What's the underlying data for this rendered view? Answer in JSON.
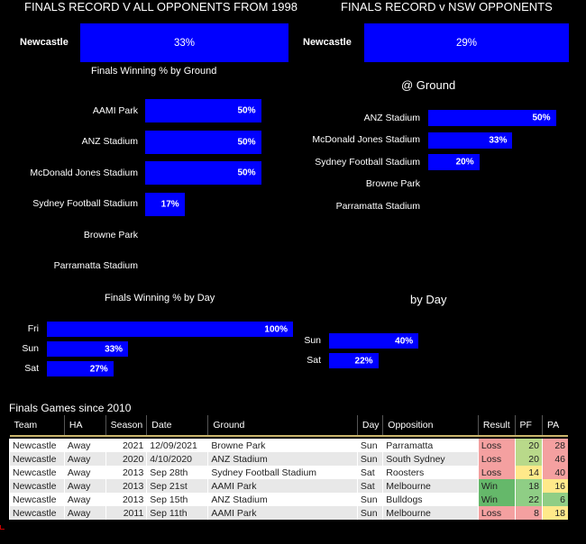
{
  "left_title": "FINALS RECORD V ALL OPPONENTS FROM 1998",
  "right_title": "FINALS RECORD v NSW OPPONENTS",
  "left_overall": {
    "team": "Newcastle",
    "value": "33%"
  },
  "right_overall": {
    "team": "Newcastle",
    "value": "29%"
  },
  "left_ground_title": "Finals Winning % by Ground",
  "right_ground_title": "@ Ground",
  "left_day_title": "Finals Winning % by Day",
  "right_day_title": "by Day",
  "colors": {
    "bar": "#0000ff",
    "win": "#65b86a",
    "loss": "#f4a0a0",
    "pf_pa_low": "#f4a0a0",
    "pf_pa_mid": "#ffe98a",
    "pf_pa_high": "#8fce85"
  },
  "chart_data": [
    {
      "type": "bar",
      "orientation": "horizontal",
      "categories": [
        "AAMI Park",
        "ANZ Stadium",
        "McDonald Jones Stadium",
        "Sydney Football Stadium",
        "Browne Park",
        "Parramatta Stadium"
      ],
      "values": [
        50,
        50,
        50,
        17,
        null,
        null
      ],
      "labels": [
        "50%",
        "50%",
        "50%",
        "17%",
        "",
        ""
      ],
      "title": "Finals Winning % by Ground",
      "xlim": [
        0,
        100
      ]
    },
    {
      "type": "bar",
      "orientation": "horizontal",
      "categories": [
        "ANZ Stadium",
        "McDonald Jones Stadium",
        "Sydney Football Stadium",
        "Browne Park",
        "Parramatta Stadium"
      ],
      "values": [
        50,
        33,
        20,
        null,
        null
      ],
      "labels": [
        "50%",
        "33%",
        "20%",
        "",
        ""
      ],
      "title": "@ Ground",
      "xlim": [
        0,
        100
      ]
    },
    {
      "type": "bar",
      "orientation": "horizontal",
      "categories": [
        "Fri",
        "Sun",
        "Sat"
      ],
      "values": [
        100,
        33,
        27
      ],
      "labels": [
        "100%",
        "33%",
        "27%"
      ],
      "title": "Finals Winning % by Day",
      "xlim": [
        0,
        100
      ]
    },
    {
      "type": "bar",
      "orientation": "horizontal",
      "categories": [
        "Sun",
        "Sat"
      ],
      "values": [
        40,
        22
      ],
      "labels": [
        "40%",
        "22%"
      ],
      "title": "by Day",
      "xlim": [
        0,
        100
      ]
    }
  ],
  "games": {
    "title": "Finals Games since 2010",
    "headers": [
      "Team",
      "HA",
      "Season",
      "Date",
      "Ground",
      "Day",
      "Opposition",
      "Result",
      "PF",
      "PA"
    ],
    "rows": [
      {
        "team": "Newcastle",
        "ha": "Away",
        "season": "2021",
        "date": "12/09/2021",
        "ground": "Browne Park",
        "day": "Sun",
        "opp": "Parramatta",
        "result": "Loss",
        "pf": "20",
        "pa": "28"
      },
      {
        "team": "Newcastle",
        "ha": "Away",
        "season": "2020",
        "date": "4/10/2020",
        "ground": "ANZ Stadium",
        "day": "Sun",
        "opp": "South Sydney",
        "result": "Loss",
        "pf": "20",
        "pa": "46"
      },
      {
        "team": "Newcastle",
        "ha": "Away",
        "season": "2013",
        "date": "Sep 28th",
        "ground": "Sydney Football Stadium",
        "day": "Sat",
        "opp": "Roosters",
        "result": "Loss",
        "pf": "14",
        "pa": "40"
      },
      {
        "team": "Newcastle",
        "ha": "Away",
        "season": "2013",
        "date": "Sep 21st",
        "ground": "AAMI Park",
        "day": "Sat",
        "opp": "Melbourne",
        "result": "Win",
        "pf": "18",
        "pa": "16"
      },
      {
        "team": "Newcastle",
        "ha": "Away",
        "season": "2013",
        "date": "Sep 15th",
        "ground": "ANZ Stadium",
        "day": "Sun",
        "opp": "Bulldogs",
        "result": "Win",
        "pf": "22",
        "pa": "6"
      },
      {
        "team": "Newcastle",
        "ha": "Away",
        "season": "2011",
        "date": "Sep 11th",
        "ground": "AAMI Park",
        "day": "Sun",
        "opp": "Melbourne",
        "result": "Loss",
        "pf": "8",
        "pa": "18"
      }
    ]
  }
}
